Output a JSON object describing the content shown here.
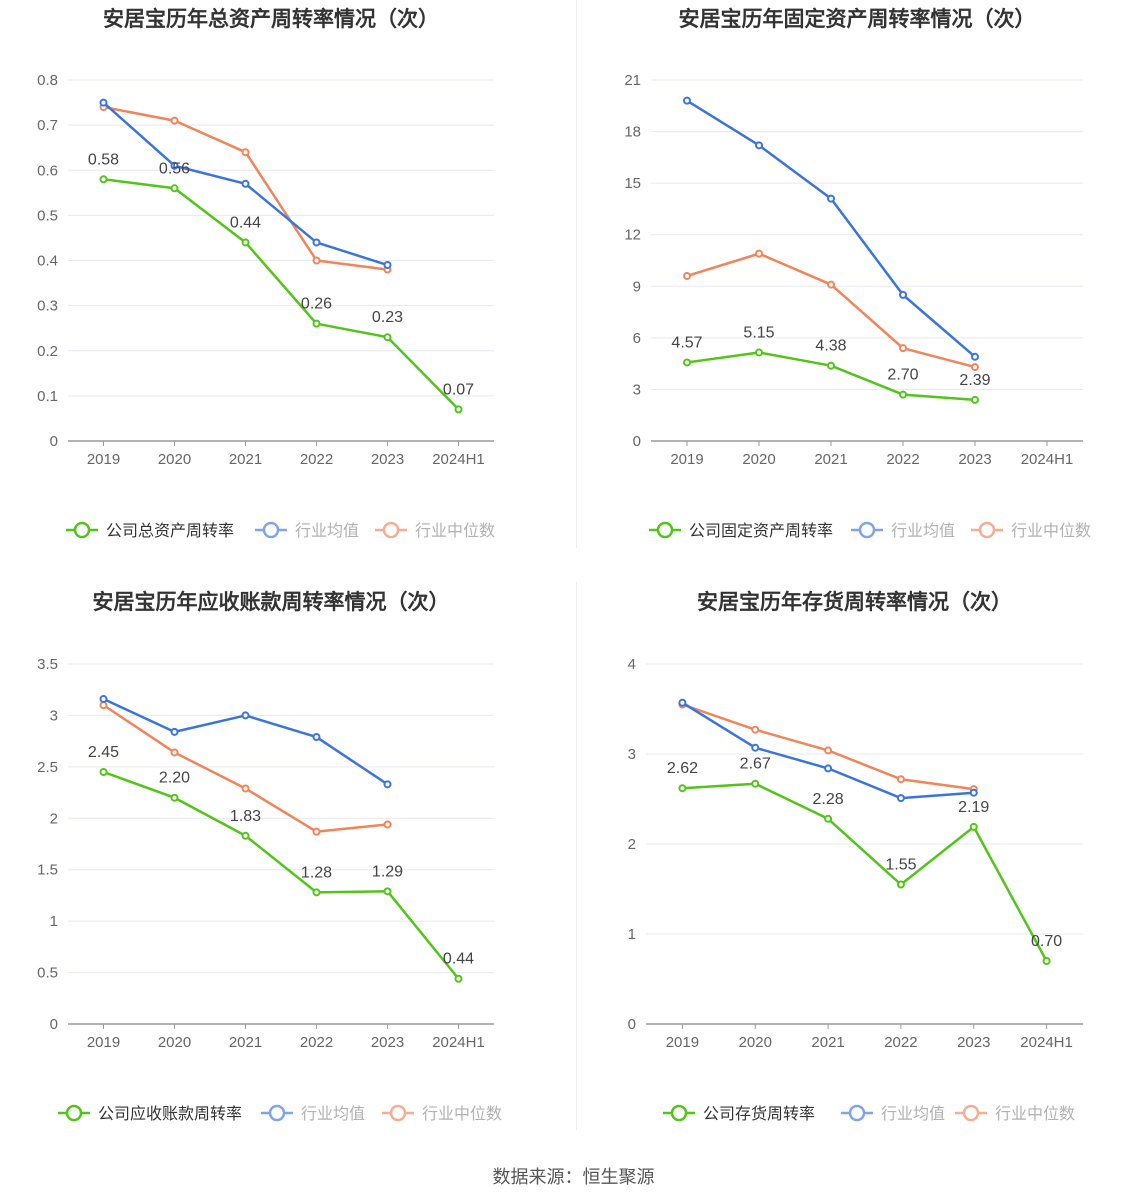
{
  "source": "数据来源：恒生聚源",
  "colors": {
    "company": "#52c41a",
    "avg": "#3b74db",
    "median": "#f0845a",
    "grid": "#e6e8ef",
    "axis": "#9a9a9a",
    "text": "#666666",
    "title": "#333333"
  },
  "chart_data": [
    {
      "type": "line",
      "title": "安居宝历年总资产周转率情况（次）",
      "categories": [
        "2019",
        "2020",
        "2021",
        "2022",
        "2023",
        "2024H1"
      ],
      "yticks": [
        "0",
        "0.1",
        "0.2",
        "0.3",
        "0.4",
        "0.5",
        "0.6",
        "0.7",
        "0.8"
      ],
      "ylim": [
        0,
        0.8
      ],
      "series": [
        {
          "name": "公司总资产周转率",
          "role": "company",
          "values": [
            0.58,
            0.56,
            0.44,
            0.26,
            0.23,
            0.07
          ],
          "labels": [
            "0.58",
            "0.56",
            "0.44",
            "0.26",
            "0.23",
            "0.07"
          ]
        },
        {
          "name": "行业均值",
          "role": "avg",
          "values": [
            0.75,
            0.61,
            0.57,
            0.44,
            0.39,
            null
          ]
        },
        {
          "name": "行业中位数",
          "role": "median",
          "values": [
            0.74,
            0.71,
            0.64,
            0.4,
            0.38,
            null
          ]
        }
      ]
    },
    {
      "type": "line",
      "title": "安居宝历年固定资产周转率情况（次）",
      "categories": [
        "2019",
        "2020",
        "2021",
        "2022",
        "2023",
        "2024H1"
      ],
      "yticks": [
        "0",
        "3",
        "6",
        "9",
        "12",
        "15",
        "18",
        "21"
      ],
      "ylim": [
        0,
        21
      ],
      "series": [
        {
          "name": "公司固定资产周转率",
          "role": "company",
          "values": [
            4.57,
            5.15,
            4.38,
            2.7,
            2.39,
            null
          ],
          "labels": [
            "4.57",
            "5.15",
            "4.38",
            "2.70",
            "2.39",
            ""
          ]
        },
        {
          "name": "行业均值",
          "role": "avg",
          "values": [
            19.8,
            17.2,
            14.1,
            8.5,
            4.9,
            null
          ]
        },
        {
          "name": "行业中位数",
          "role": "median",
          "values": [
            9.6,
            10.9,
            9.1,
            5.4,
            4.3,
            null
          ]
        }
      ]
    },
    {
      "type": "line",
      "title": "安居宝历年应收账款周转率情况（次）",
      "categories": [
        "2019",
        "2020",
        "2021",
        "2022",
        "2023",
        "2024H1"
      ],
      "yticks": [
        "0",
        "0.5",
        "1",
        "1.5",
        "2",
        "2.5",
        "3",
        "3.5"
      ],
      "ylim": [
        0,
        3.5
      ],
      "series": [
        {
          "name": "公司应收账款周转率",
          "role": "company",
          "values": [
            2.45,
            2.2,
            1.83,
            1.28,
            1.29,
            0.44
          ],
          "labels": [
            "2.45",
            "2.20",
            "1.83",
            "1.28",
            "1.29",
            "0.44"
          ]
        },
        {
          "name": "行业均值",
          "role": "avg",
          "values": [
            3.16,
            2.84,
            3.0,
            2.79,
            2.33,
            null
          ]
        },
        {
          "name": "行业中位数",
          "role": "median",
          "values": [
            3.1,
            2.64,
            2.29,
            1.87,
            1.94,
            null
          ]
        }
      ]
    },
    {
      "type": "line",
      "title": "安居宝历年存货周转率情况（次）",
      "categories": [
        "2019",
        "2020",
        "2021",
        "2022",
        "2023",
        "2024H1"
      ],
      "yticks": [
        "0",
        "1",
        "2",
        "3",
        "4"
      ],
      "ylim": [
        0,
        4
      ],
      "series": [
        {
          "name": "公司存货周转率",
          "role": "company",
          "values": [
            2.62,
            2.67,
            2.28,
            1.55,
            2.19,
            0.7
          ],
          "labels": [
            "2.62",
            "2.67",
            "2.28",
            "1.55",
            "2.19",
            "0.70"
          ]
        },
        {
          "name": "行业均值",
          "role": "avg",
          "values": [
            3.57,
            3.07,
            2.84,
            2.51,
            2.57,
            null
          ]
        },
        {
          "name": "行业中位数",
          "role": "median",
          "values": [
            3.55,
            3.27,
            3.04,
            2.72,
            2.61,
            null
          ]
        }
      ]
    }
  ]
}
